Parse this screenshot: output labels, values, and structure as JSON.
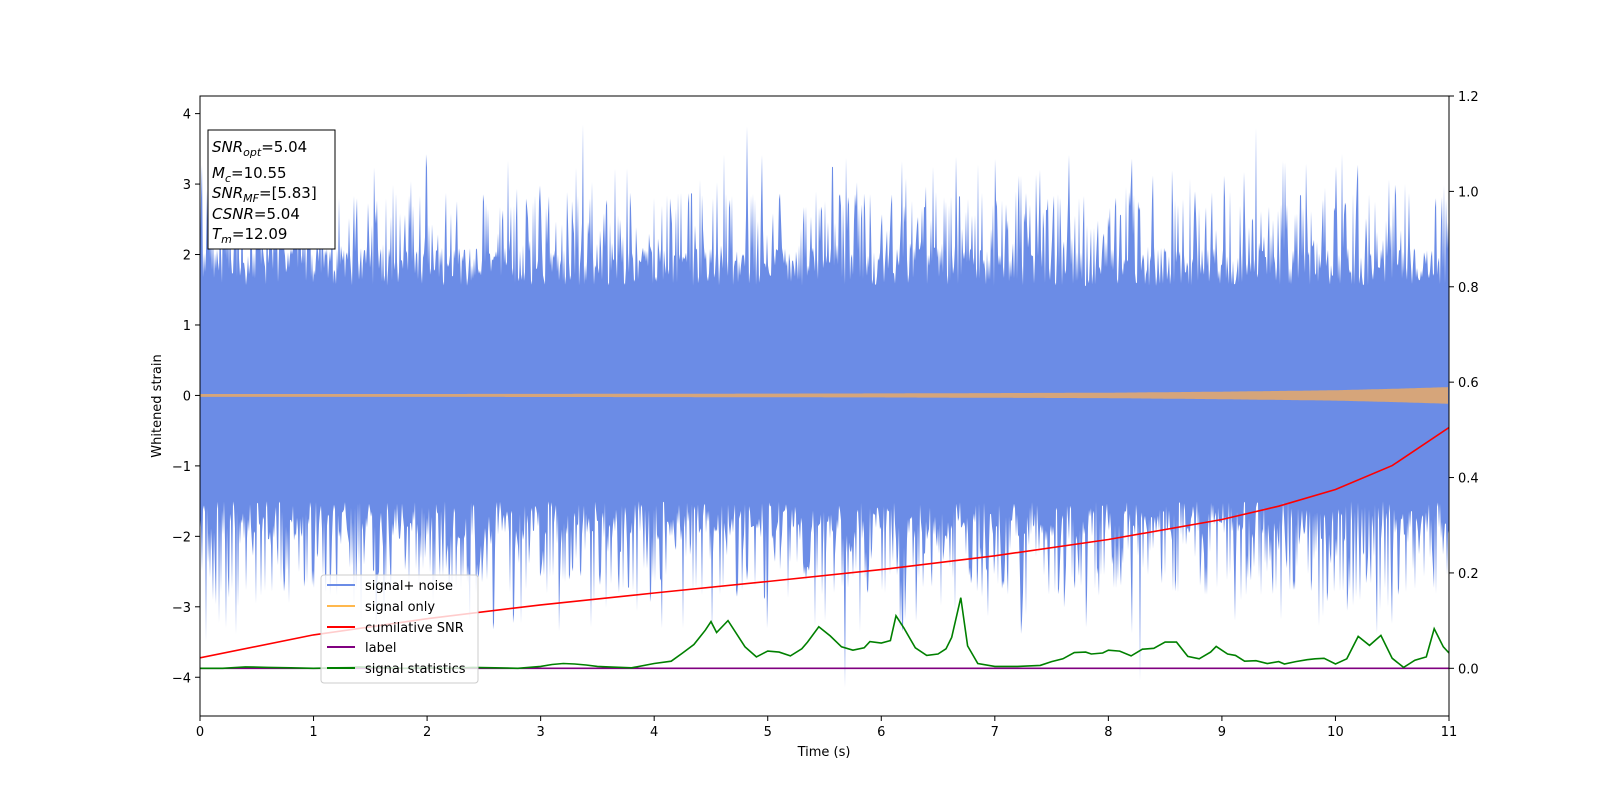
{
  "chart_data": {
    "type": "line",
    "xlabel": "Time (s)",
    "ylabel": "Whitened strain",
    "xlim": [
      0,
      11
    ],
    "ylim": [
      -4.55,
      4.25
    ],
    "y2lim": [
      -0.1,
      1.2
    ],
    "x_ticks": [
      "0",
      "1",
      "2",
      "3",
      "4",
      "5",
      "6",
      "7",
      "8",
      "9",
      "10",
      "11"
    ],
    "y_ticks": [
      "4",
      "3",
      "2",
      "1",
      "0",
      "−1",
      "−2",
      "−3",
      "−4"
    ],
    "y2_ticks": [
      "1.2",
      "1.0",
      "0.8",
      "0.6",
      "0.4",
      "0.2",
      "0.0"
    ],
    "grid": false,
    "legend_position": "lower-left",
    "colors": {
      "signal_noise": "#6b8ce6",
      "signal_only": "#ffb84d",
      "cumulative_snr": "#ff0000",
      "label": "#800080",
      "signal_statistics": "#008000"
    },
    "annotation": {
      "snr_opt": {
        "name": "SNR",
        "sub": "opt",
        "value": "=5.04"
      },
      "mc": {
        "name": "M",
        "sub": "c",
        "value": "=10.55"
      },
      "snr_mf": {
        "name": "SNR",
        "sub": "MF",
        "value": "=[5.83]"
      },
      "csnr": {
        "name": "CSNR",
        "sub": "",
        "value": "=5.04"
      },
      "tm": {
        "name": "T",
        "sub": "m",
        "value": "=12.09"
      }
    },
    "series": [
      {
        "name": "signal+ noise",
        "axis": "left",
        "description_level": "gaussian-like whitened noise, amplitude range about -4.2 to 3.85",
        "peaks": [
          [
            3.37,
            3.85
          ],
          [
            4.82,
            3.82
          ],
          [
            9.3,
            3.8
          ],
          [
            0.23,
            -3.3
          ],
          [
            5.68,
            -4.15
          ],
          [
            8.28,
            -4.05
          ],
          [
            0.05,
            -3.5
          ]
        ]
      },
      {
        "name": "signal only",
        "axis": "left",
        "envelope_x": [
          0,
          2,
          4,
          6,
          8,
          9,
          10,
          10.5,
          11
        ],
        "envelope_y": [
          0.01,
          0.012,
          0.015,
          0.02,
          0.03,
          0.045,
          0.065,
          0.085,
          0.11
        ]
      },
      {
        "name": "cumilative SNR",
        "axis": "right",
        "x": [
          0,
          1,
          2,
          3,
          4,
          5,
          6,
          7,
          8,
          9,
          9.5,
          10,
          10.5,
          11
        ],
        "y": [
          0.022,
          0.07,
          0.104,
          0.133,
          0.158,
          0.182,
          0.207,
          0.236,
          0.27,
          0.312,
          0.34,
          0.375,
          0.425,
          0.505
        ]
      },
      {
        "name": "label",
        "axis": "right",
        "x": [
          0,
          11
        ],
        "y": [
          0.0,
          0.0
        ]
      },
      {
        "name": "signal statistics",
        "axis": "right",
        "x": [
          0,
          0.2,
          0.4,
          0.6,
          0.8,
          1.0,
          1.2,
          1.4,
          1.6,
          1.8,
          2.0,
          2.2,
          2.4,
          2.6,
          2.8,
          3.0,
          3.1,
          3.2,
          3.3,
          3.4,
          3.5,
          3.6,
          3.8,
          4.0,
          4.15,
          4.25,
          4.35,
          4.45,
          4.5,
          4.55,
          4.65,
          4.8,
          4.9,
          5.0,
          5.1,
          5.2,
          5.3,
          5.35,
          5.45,
          5.55,
          5.65,
          5.75,
          5.85,
          5.9,
          6.0,
          6.08,
          6.13,
          6.2,
          6.3,
          6.4,
          6.5,
          6.57,
          6.62,
          6.7,
          6.76,
          6.85,
          7.0,
          7.2,
          7.4,
          7.5,
          7.6,
          7.7,
          7.8,
          7.85,
          7.95,
          8.0,
          8.1,
          8.2,
          8.3,
          8.4,
          8.5,
          8.6,
          8.7,
          8.8,
          8.9,
          8.95,
          9.05,
          9.12,
          9.2,
          9.3,
          9.4,
          9.5,
          9.55,
          9.65,
          9.75,
          9.82,
          9.9,
          10.0,
          10.1,
          10.2,
          10.3,
          10.4,
          10.5,
          10.6,
          10.7,
          10.8,
          10.87,
          10.95,
          11.0
        ],
        "y": [
          0.0,
          0.0,
          0.003,
          0.002,
          0.001,
          0.0,
          0.001,
          0.003,
          0.001,
          0.0,
          0.001,
          0.0,
          0.002,
          0.001,
          0.0,
          0.004,
          0.008,
          0.01,
          0.009,
          0.007,
          0.004,
          0.003,
          0.001,
          0.01,
          0.015,
          0.032,
          0.05,
          0.08,
          0.098,
          0.075,
          0.1,
          0.045,
          0.024,
          0.036,
          0.034,
          0.026,
          0.041,
          0.055,
          0.087,
          0.068,
          0.045,
          0.038,
          0.043,
          0.056,
          0.053,
          0.058,
          0.11,
          0.084,
          0.043,
          0.027,
          0.03,
          0.041,
          0.065,
          0.148,
          0.047,
          0.01,
          0.004,
          0.004,
          0.006,
          0.014,
          0.02,
          0.033,
          0.034,
          0.03,
          0.032,
          0.038,
          0.036,
          0.026,
          0.04,
          0.042,
          0.055,
          0.055,
          0.025,
          0.02,
          0.034,
          0.046,
          0.03,
          0.027,
          0.015,
          0.016,
          0.01,
          0.014,
          0.009,
          0.014,
          0.018,
          0.02,
          0.021,
          0.009,
          0.02,
          0.067,
          0.048,
          0.069,
          0.021,
          0.002,
          0.017,
          0.024,
          0.083,
          0.045,
          0.032
        ]
      }
    ]
  }
}
